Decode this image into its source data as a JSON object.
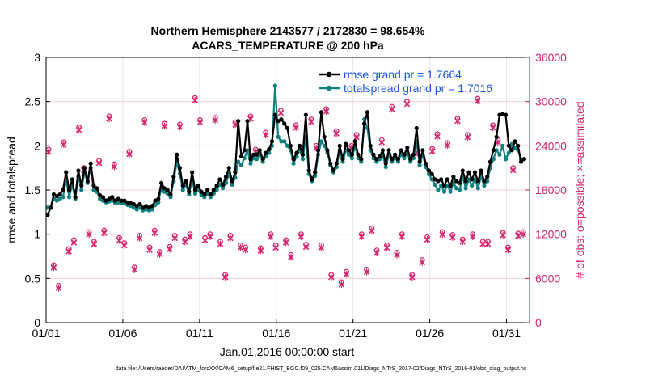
{
  "chart_data": {
    "type": "line",
    "title_line1": "Northern Hemisphere 2143577 / 2172830 = 98.654%",
    "title_line2": "ACARS_TEMPERATURE @ 200 hPa",
    "xlabel": "Jan.01,2016 00:00:00 start",
    "ylabel": "rmse and totalspread",
    "ylabel_right": "# of obs: o=possible; ×=assimilated",
    "footer": "data file: /Users/raeder/DAI/ATM_forcXX/CAM6_setup/f.e21.FHIST_BGC.f09_025.CAM6assim.011/Diags_NTrS_2017-02/Diags_NTrS_2016-01/obs_diag_output.nc",
    "xlim": [
      0,
      31.5
    ],
    "ylim": [
      0,
      3
    ],
    "ylim_right": [
      0,
      36000
    ],
    "x_ticks": [
      0,
      5,
      10,
      15,
      20,
      25,
      30
    ],
    "x_tick_labels": [
      "01/01",
      "01/06",
      "01/11",
      "01/16",
      "01/21",
      "01/26",
      "01/31"
    ],
    "y_ticks": [
      0,
      0.5,
      1,
      1.5,
      2,
      2.5,
      3
    ],
    "y_tick_labels": [
      "0",
      "0.5",
      "1",
      "1.5",
      "2",
      "2.5",
      "3"
    ],
    "y_right_ticks": [
      0,
      6000,
      12000,
      18000,
      24000,
      30000,
      36000
    ],
    "y_right_tick_labels": [
      "0",
      "6000",
      "12000",
      "18000",
      "24000",
      "30000",
      "36000"
    ],
    "colors": {
      "rmse": "#000000",
      "spread": "#0f7f7f",
      "obs": "#d6246e",
      "grid": "#e6e6e6",
      "legend_text": "#1a55e0"
    },
    "series": [
      {
        "name": "rmse grand pr = 1.7664",
        "axis": "left",
        "values": [
          1.22,
          1.3,
          1.45,
          1.43,
          1.45,
          1.5,
          1.7,
          1.5,
          1.62,
          1.42,
          1.72,
          1.55,
          1.75,
          1.6,
          1.8,
          1.55,
          1.52,
          1.44,
          1.42,
          1.38,
          1.4,
          1.42,
          1.38,
          1.4,
          1.38,
          1.38,
          1.36,
          1.35,
          1.34,
          1.32,
          1.34,
          1.3,
          1.32,
          1.3,
          1.32,
          1.38,
          1.4,
          1.58,
          1.52,
          1.5,
          1.45,
          1.65,
          1.9,
          1.75,
          1.55,
          1.6,
          1.48,
          1.7,
          1.5,
          1.55,
          1.48,
          1.45,
          1.5,
          1.45,
          1.5,
          1.55,
          1.62,
          1.56,
          1.65,
          1.75,
          1.6,
          1.7,
          2.28,
          1.88,
          1.95,
          2.28,
          1.85,
          1.9,
          1.9,
          1.95,
          1.85,
          1.92,
          1.96,
          2.05,
          2.35,
          2.28,
          2.3,
          2.25,
          2.2,
          2.0,
          1.85,
          1.92,
          2.0,
          1.9,
          2.35,
          1.72,
          1.62,
          1.7,
          1.95,
          2.38,
          2.1,
          1.95,
          1.8,
          1.72,
          1.8,
          2.0,
          1.85,
          2.02,
          1.95,
          1.9,
          2.05,
          1.9,
          1.85,
          2.25,
          2.38,
          2.0,
          1.9,
          1.85,
          1.88,
          1.95,
          1.8,
          1.95,
          1.85,
          1.9,
          1.85,
          1.95,
          1.9,
          1.98,
          1.85,
          1.9,
          2.2,
          1.82,
          1.95,
          1.8,
          1.72,
          1.68,
          1.62,
          1.6,
          1.62,
          1.55,
          1.62,
          1.55,
          1.65,
          1.6,
          1.58,
          1.72,
          1.6,
          1.7,
          1.62,
          1.7,
          1.6,
          1.72,
          1.6,
          1.65,
          1.82,
          1.95,
          2.1,
          2.35,
          2.36,
          2.35,
          2.0,
          1.95,
          2.05,
          2.0,
          1.82,
          1.85
        ]
      },
      {
        "name": "totalspread grand pr = 1.7016",
        "axis": "left",
        "values": [
          1.3,
          1.3,
          1.4,
          1.38,
          1.4,
          1.42,
          1.62,
          1.42,
          1.56,
          1.4,
          1.65,
          1.5,
          1.7,
          1.58,
          1.75,
          1.5,
          1.48,
          1.4,
          1.38,
          1.36,
          1.37,
          1.38,
          1.35,
          1.36,
          1.35,
          1.35,
          1.33,
          1.32,
          1.3,
          1.28,
          1.3,
          1.27,
          1.28,
          1.27,
          1.28,
          1.33,
          1.36,
          1.52,
          1.48,
          1.46,
          1.42,
          1.6,
          1.82,
          1.68,
          1.5,
          1.56,
          1.45,
          1.62,
          1.46,
          1.5,
          1.44,
          1.42,
          1.46,
          1.42,
          1.46,
          1.5,
          1.56,
          1.52,
          1.58,
          1.68,
          1.56,
          1.64,
          1.82,
          1.78,
          1.86,
          1.95,
          1.8,
          1.86,
          1.85,
          1.9,
          1.82,
          1.88,
          1.92,
          2.0,
          2.68,
          2.1,
          2.05,
          2.05,
          2.0,
          1.95,
          1.8,
          1.88,
          1.95,
          1.85,
          2.1,
          1.68,
          1.6,
          1.66,
          1.9,
          2.05,
          2.0,
          1.92,
          1.78,
          1.7,
          1.76,
          1.95,
          1.82,
          1.95,
          1.9,
          1.86,
          2.0,
          1.86,
          1.82,
          2.3,
          2.2,
          1.95,
          1.86,
          1.82,
          1.85,
          1.9,
          1.76,
          1.9,
          1.82,
          1.86,
          1.82,
          1.9,
          1.86,
          1.92,
          1.82,
          1.86,
          2.05,
          1.78,
          1.9,
          1.76,
          1.68,
          1.62,
          1.56,
          1.5,
          1.55,
          1.48,
          1.55,
          1.48,
          1.58,
          1.52,
          1.5,
          1.65,
          1.52,
          1.62,
          1.55,
          1.62,
          1.52,
          1.65,
          1.55,
          1.6,
          1.75,
          1.85,
          1.95,
          1.9,
          2.0,
          1.85,
          1.92,
          2.02,
          1.98,
          1.95,
          1.85,
          1.85
        ]
      },
      {
        "name": "obs possible (o)",
        "axis": "right",
        "values": [
          23500,
          7800,
          5000,
          24500,
          10000,
          11200,
          26500,
          21000,
          12300,
          11000,
          22000,
          12500,
          28000,
          21500,
          11500,
          10800,
          23200,
          7500,
          11800,
          27500,
          10200,
          12500,
          9600,
          27000,
          10300,
          11800,
          26900,
          11300,
          12000,
          30500,
          27500,
          11500,
          12000,
          27800,
          11000,
          6500,
          11800,
          27200,
          10500,
          10200,
          28000,
          23500,
          10100,
          25800,
          12000,
          10500,
          28800,
          11200,
          9200,
          26800,
          12000,
          10600,
          27600,
          24000,
          10500,
          29000,
          6500,
          26000,
          5500,
          6900,
          24000,
          25500,
          12000,
          7200,
          12800,
          9800,
          24800,
          10500,
          29300,
          9500,
          12000,
          30000,
          6500,
          23400,
          8500,
          11600,
          23600,
          25600,
          12300,
          24400,
          11900,
          27700,
          11300,
          25500,
          12000,
          30400,
          11000,
          11000,
          26800,
          24800,
          12200,
          10200,
          21000,
          12100,
          12300
        ],
        "values_assim": [
          23500,
          7800,
          5000,
          24500,
          10000,
          11200,
          26500,
          21000,
          12300,
          11000,
          22000,
          12500,
          28000,
          21500,
          11500,
          10800,
          23200,
          7500,
          11800,
          27500,
          10200,
          12500,
          9600,
          27000,
          10300,
          11800,
          26900,
          11300,
          12000,
          30500,
          27500,
          11500,
          12000,
          27800,
          11000,
          6500,
          11800,
          27200,
          10500,
          10200,
          28000,
          23500,
          10100,
          25800,
          12000,
          10500,
          28800,
          11200,
          9200,
          26800,
          12000,
          10600,
          27600,
          24000,
          10500,
          29000,
          6500,
          26000,
          5500,
          6900,
          24000,
          25500,
          12000,
          7200,
          12800,
          9800,
          24800,
          10500,
          29300,
          9500,
          12000,
          30000,
          6500,
          23400,
          8500,
          11600,
          23600,
          25600,
          12300,
          24400,
          11900,
          27700,
          11300,
          25500,
          12000,
          30400,
          11000,
          11000,
          26800,
          24800,
          12200,
          10200,
          21000,
          12100,
          12300
        ]
      }
    ]
  }
}
